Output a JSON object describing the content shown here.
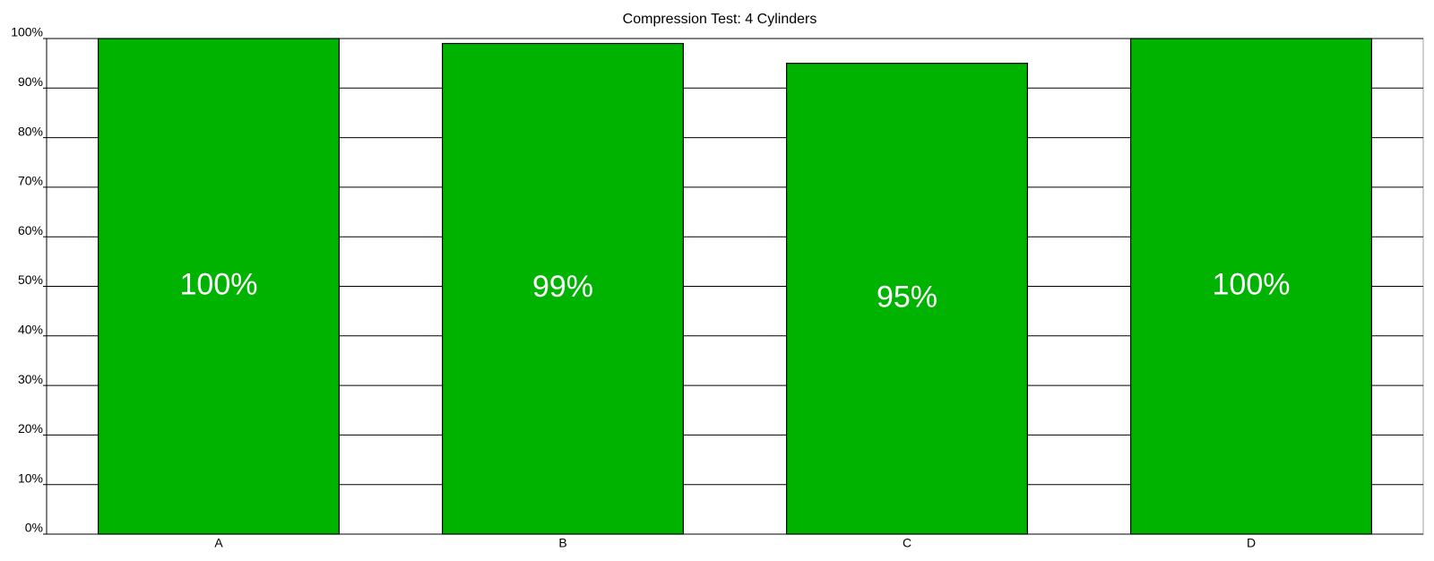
{
  "chart_data": {
    "type": "bar",
    "title": "Compression Test: 4 Cylinders",
    "categories": [
      "A",
      "B",
      "C",
      "D"
    ],
    "values": [
      100,
      99,
      95,
      100
    ],
    "value_labels": [
      "100%",
      "99%",
      "95%",
      "100%"
    ],
    "color": "#00b300",
    "ylim": [
      0,
      100
    ],
    "yticks": [
      {
        "value": 0,
        "label": "0%"
      },
      {
        "value": 10,
        "label": "10%"
      },
      {
        "value": 20,
        "label": "20%"
      },
      {
        "value": 30,
        "label": "30%"
      },
      {
        "value": 40,
        "label": "40%"
      },
      {
        "value": 50,
        "label": "50%"
      },
      {
        "value": 60,
        "label": "60%"
      },
      {
        "value": 70,
        "label": "70%"
      },
      {
        "value": 80,
        "label": "80%"
      },
      {
        "value": 90,
        "label": "90%"
      },
      {
        "value": 100,
        "label": "100%"
      }
    ],
    "grid": true
  }
}
